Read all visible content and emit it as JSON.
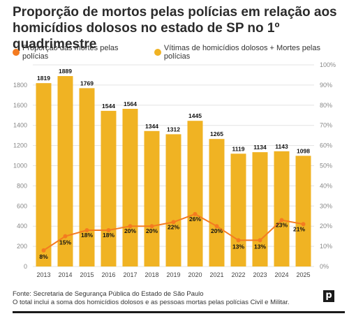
{
  "title": "Proporção de mortos pelas polícias em relação aos homicídios dolosos no estado de SP no 1º quadrimestre",
  "footer": {
    "source": "Fonte: Secretaria de Segurança Pública do Estado de São Paulo",
    "note": "O total inclui a soma dos homicídios dolosos e as pessoas mortas pelas polícias Civil e Militar."
  },
  "logo_letter": "p",
  "colors": {
    "bar": "#f0b323",
    "line": "#f47b20",
    "grid": "#e3e3e3"
  },
  "chart_data": {
    "type": "bar+line",
    "categories": [
      "2013",
      "2014",
      "2015",
      "2016",
      "2017",
      "2018",
      "2019",
      "2020",
      "2021",
      "2022",
      "2023",
      "2024",
      "2025"
    ],
    "series": [
      {
        "name": "Vítimas de homicídios dolosos + Mortes pelas polícias",
        "type": "bar",
        "axis": "left",
        "values": [
          1819,
          1889,
          1769,
          1544,
          1564,
          1344,
          1312,
          1445,
          1265,
          1119,
          1134,
          1143,
          1098
        ]
      },
      {
        "name": "Proporção das mortes pelas polícias",
        "type": "line",
        "axis": "right",
        "unit": "%",
        "values": [
          8,
          15,
          18,
          18,
          20,
          20,
          22,
          26,
          20,
          13,
          13,
          23,
          21
        ]
      }
    ],
    "y_left": {
      "min": 0,
      "max": 1800,
      "ticks": [
        0,
        200,
        400,
        600,
        800,
        1000,
        1200,
        1400,
        1600,
        1800
      ]
    },
    "y_right": {
      "min": 0,
      "max": 100,
      "ticks": [
        "0%",
        "10%",
        "20%",
        "30%",
        "40%",
        "50%",
        "60%",
        "70%",
        "80%",
        "90%",
        "100%"
      ]
    },
    "legend_position": "top-left",
    "grid": true
  }
}
